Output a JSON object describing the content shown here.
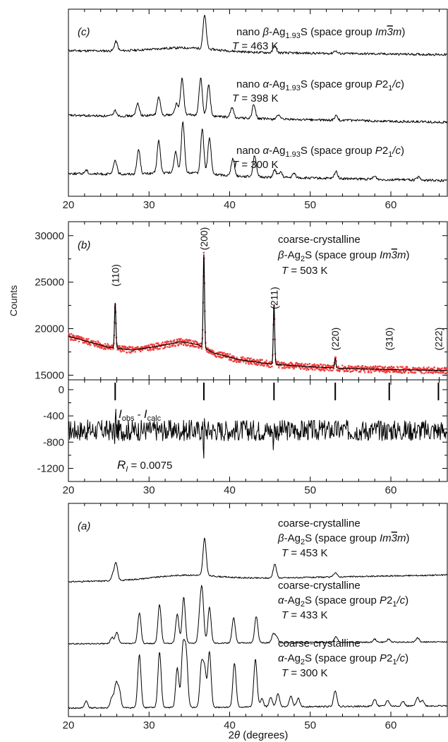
{
  "chart_data": [
    {
      "type": "line",
      "panel": "(c)",
      "xlim": [
        20,
        67
      ],
      "xticks": [
        20,
        30,
        40,
        50,
        60
      ],
      "series": [
        {
          "label_lines": [
            "nano β-Ag1.93S (space group Im3m)",
            "T = 463 K"
          ],
          "peaks": [
            [
              25.9,
              14
            ],
            [
              36.9,
              50
            ],
            [
              45.6,
              10
            ],
            [
              53.1,
              4
            ]
          ],
          "baseline": [
            14,
            8
          ]
        },
        {
          "label_lines": [
            "nano α-Ag1.93S (space group P21/c)",
            "T = 398 K"
          ],
          "peaks": [
            [
              25.8,
              8
            ],
            [
              28.6,
              18
            ],
            [
              31.2,
              26
            ],
            [
              33.4,
              16
            ],
            [
              34.1,
              52
            ],
            [
              36.4,
              54
            ],
            [
              37.4,
              44
            ],
            [
              40.3,
              14
            ],
            [
              43.0,
              20
            ],
            [
              46.0,
              6
            ],
            [
              53.2,
              6
            ]
          ],
          "baseline": [
            20,
            10
          ]
        },
        {
          "label_lines": [
            "nano α-Ag1.93S (space group P21/c)",
            "T = 300 K"
          ],
          "peaks": [
            [
              22.2,
              5
            ],
            [
              25.8,
              20
            ],
            [
              28.7,
              34
            ],
            [
              31.2,
              45
            ],
            [
              33.3,
              30
            ],
            [
              34.2,
              70
            ],
            [
              36.6,
              62
            ],
            [
              37.5,
              50
            ],
            [
              40.4,
              24
            ],
            [
              43.1,
              30
            ],
            [
              45.6,
              10
            ],
            [
              46.3,
              8
            ],
            [
              48.0,
              6
            ],
            [
              53.2,
              10
            ],
            [
              58.0,
              4
            ],
            [
              63.4,
              4
            ]
          ],
          "baseline": [
            16,
            6
          ]
        }
      ],
      "panel_label": "(c)"
    },
    {
      "type": "scatter",
      "panel": "(b)",
      "xlim": [
        20,
        67
      ],
      "xticks": [
        20,
        30,
        40,
        50,
        60
      ],
      "ylim": [
        14500,
        31500
      ],
      "yticks": [
        15000,
        20000,
        25000,
        30000
      ],
      "ylabel": "Counts",
      "label_lines": [
        "coarse-crystalline",
        "β-Ag2S (space group Im3m)",
        "T = 503 K"
      ],
      "background_points": [
        [
          20,
          19200
        ],
        [
          22,
          18700
        ],
        [
          25,
          18000
        ],
        [
          28,
          17700
        ],
        [
          31,
          18100
        ],
        [
          34,
          18600
        ],
        [
          36,
          18300
        ],
        [
          38,
          17400
        ],
        [
          41,
          16700
        ],
        [
          45,
          16200
        ],
        [
          50,
          15900
        ],
        [
          55,
          15700
        ],
        [
          60,
          15600
        ],
        [
          67,
          15500
        ]
      ],
      "peaks": [
        [
          25.8,
          22800
        ],
        [
          36.8,
          28000
        ],
        [
          45.5,
          22600
        ],
        [
          53.1,
          16800
        ]
      ],
      "reflections": [
        {
          "hkl": "(110)",
          "x": 25.8
        },
        {
          "hkl": "(200)",
          "x": 36.8
        },
        {
          "hkl": "(211)",
          "x": 45.5
        },
        {
          "hkl": "(220)",
          "x": 53.1
        },
        {
          "hkl": "(310)",
          "x": 59.8
        },
        {
          "hkl": "(222)",
          "x": 65.9
        }
      ],
      "panel_label": "(b)"
    },
    {
      "type": "line",
      "panel": "(b) difference",
      "xlim": [
        20,
        67
      ],
      "xticks": [
        20,
        30,
        40,
        50,
        60
      ],
      "ylim": [
        -1400,
        150
      ],
      "yticks": [
        0,
        -400,
        -800,
        -1200
      ],
      "difference_label": [
        "I",
        "obs",
        " - ",
        "I",
        "calc"
      ],
      "r_label": [
        "R",
        "I",
        " = 0.0075"
      ],
      "mean": -620,
      "noise": 160,
      "bragg_marks": [
        25.8,
        36.8,
        45.5,
        53.1,
        59.8,
        65.9
      ]
    },
    {
      "type": "line",
      "panel": "(a)",
      "xlim": [
        20,
        67
      ],
      "xticks": [
        20,
        30,
        40,
        50,
        60
      ],
      "xlabel": [
        "2",
        "θ",
        " (degrees)"
      ],
      "series": [
        {
          "label_lines": [
            "coarse-crystalline",
            "β-Ag2S (space group Im3m)",
            "T = 453 K"
          ],
          "peaks": [
            [
              25.5,
              10
            ],
            [
              25.9,
              30
            ],
            [
              36.9,
              66
            ],
            [
              45.6,
              25
            ],
            [
              53.1,
              8
            ]
          ],
          "baseline": [
            0,
            12
          ]
        },
        {
          "label_lines": [
            "coarse-crystalline",
            "α-Ag2S (space group P21/c)",
            "T = 433 K"
          ],
          "peaks": [
            [
              25.4,
              12
            ],
            [
              26.0,
              22
            ],
            [
              28.8,
              60
            ],
            [
              31.3,
              76
            ],
            [
              33.5,
              58
            ],
            [
              34.3,
              90
            ],
            [
              36.3,
              50
            ],
            [
              36.6,
              94
            ],
            [
              37.5,
              70
            ],
            [
              40.5,
              50
            ],
            [
              43.3,
              52
            ],
            [
              45.4,
              16
            ],
            [
              45.8,
              12
            ],
            [
              53.2,
              12
            ],
            [
              58.0,
              6
            ],
            [
              59.7,
              6
            ],
            [
              63.3,
              8
            ]
          ],
          "baseline": [
            0,
            4
          ]
        },
        {
          "label_lines": [
            "coarse-crystalline",
            "α-Ag2S (space group P21/c)",
            "T = 300 K"
          ],
          "peaks": [
            [
              22.2,
              12
            ],
            [
              25.4,
              18
            ],
            [
              25.9,
              40
            ],
            [
              26.3,
              30
            ],
            [
              28.8,
              92
            ],
            [
              31.3,
              96
            ],
            [
              33.5,
              68
            ],
            [
              34.2,
              100
            ],
            [
              34.6,
              92
            ],
            [
              36.5,
              72
            ],
            [
              36.9,
              64
            ],
            [
              37.5,
              96
            ],
            [
              40.6,
              76
            ],
            [
              43.2,
              82
            ],
            [
              44.0,
              14
            ],
            [
              45.1,
              16
            ],
            [
              46.0,
              22
            ],
            [
              47.6,
              18
            ],
            [
              48.5,
              14
            ],
            [
              53.1,
              28
            ],
            [
              58.0,
              12
            ],
            [
              59.6,
              10
            ],
            [
              61.5,
              8
            ],
            [
              63.3,
              14
            ],
            [
              63.9,
              10
            ]
          ],
          "baseline": [
            0,
            4
          ]
        }
      ],
      "panel_label": "(a)"
    }
  ]
}
